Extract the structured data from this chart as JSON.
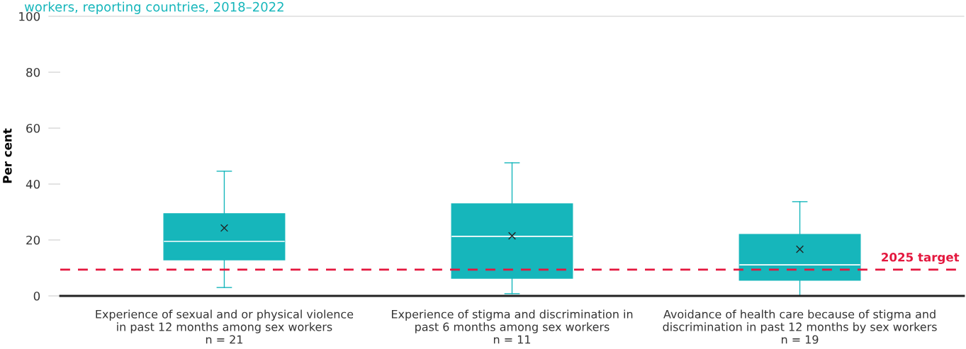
{
  "chart_data": {
    "type": "box",
    "title": "workers, reporting countries, 2018–2022",
    "ylabel": "Per cent",
    "categories": [
      "Experience of sexual and or physical violence\nin past 12 months among sex workers\nn = 21",
      "Experience of stigma and discrimination in\npast 6 months among sex workers\nn = 11",
      "Avoidance of health care because of stigma and\ndiscrimination in past 12 months by sex workers\nn = 19"
    ],
    "boxes": [
      {
        "low": 3,
        "q1": 12.9,
        "median": 19.5,
        "q3": 29.4,
        "high": 44.6,
        "mean": 24.3
      },
      {
        "low": 0.8,
        "q1": 6.3,
        "median": 21.3,
        "q3": 32.9,
        "high": 47.6,
        "mean": 21.5
      },
      {
        "low": 0,
        "q1": 5.6,
        "median": 11.1,
        "q3": 22,
        "high": 33.7,
        "mean": 16.7
      }
    ],
    "color": "#16b6bb",
    "ylim": [
      0,
      100
    ],
    "yticks": [
      0,
      20,
      40,
      60,
      80,
      100
    ],
    "grid": false,
    "ref_lines": [
      {
        "axis": "y",
        "value": 9.4,
        "label": "2025 target",
        "color": "#e4173e",
        "line_style": "dashed"
      }
    ]
  }
}
